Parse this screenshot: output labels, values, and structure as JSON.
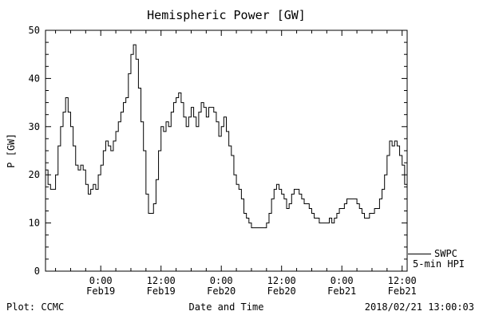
{
  "title": "Hemispheric Power [GW]",
  "ylabel": "P [GW]",
  "xlabel": "Date and Time",
  "footer": {
    "left": "Plot: CCMC",
    "right": "2018/02/21 13:00:03"
  },
  "legend": {
    "source": "SWPC",
    "series": "5-min HPI"
  },
  "colors": {
    "line": "#000000",
    "background": "#ffffff"
  },
  "chart_data": {
    "type": "line",
    "title": "Hemispheric Power [GW]",
    "xlabel": "Date and Time",
    "ylabel": "P [GW]",
    "ylim": [
      0,
      50
    ],
    "yticks": [
      0,
      10,
      20,
      30,
      40,
      50
    ],
    "y_minor_step": 2.5,
    "xlim": [
      0,
      72
    ],
    "x_unit": "hours; 0 = left edge (Feb18 13:00), ticks every 12 h",
    "x_minor_step": 3,
    "xticks": [
      {
        "pos": 11,
        "label": "0:00",
        "sub": "Feb19"
      },
      {
        "pos": 23,
        "label": "12:00",
        "sub": "Feb19"
      },
      {
        "pos": 35,
        "label": "0:00",
        "sub": "Feb20"
      },
      {
        "pos": 47,
        "label": "12:00",
        "sub": "Feb20"
      },
      {
        "pos": 59,
        "label": "0:00",
        "sub": "Feb21"
      },
      {
        "pos": 71,
        "label": "12:00",
        "sub": "Feb21"
      }
    ],
    "grid": false,
    "legend_position": "outside-right-bottom",
    "step": true,
    "series": [
      {
        "name": "SWPC 5-min HPI",
        "x_start": 0,
        "x_step": 0.5,
        "values": [
          21,
          18,
          17,
          17,
          20,
          26,
          30,
          33,
          36,
          33,
          30,
          26,
          22,
          21,
          22,
          21,
          18,
          16,
          17,
          18,
          17,
          20,
          22,
          25,
          27,
          26,
          25,
          27,
          29,
          31,
          33,
          35,
          36,
          41,
          45,
          47,
          44,
          38,
          31,
          25,
          16,
          12,
          12,
          14,
          19,
          25,
          30,
          29,
          31,
          30,
          33,
          35,
          36,
          37,
          35,
          32,
          30,
          32,
          34,
          32,
          30,
          33,
          35,
          34,
          32,
          34,
          34,
          33,
          31,
          28,
          30,
          32,
          29,
          26,
          24,
          20,
          18,
          17,
          15,
          12,
          11,
          10,
          9,
          9,
          9,
          9,
          9,
          9,
          10,
          12,
          15,
          17,
          18,
          17,
          16,
          15,
          13,
          14,
          16,
          17,
          17,
          16,
          15,
          14,
          14,
          13,
          12,
          11,
          11,
          10,
          10,
          10,
          10,
          11,
          10,
          11,
          12,
          13,
          13,
          14,
          15,
          15,
          15,
          15,
          14,
          13,
          12,
          11,
          11,
          12,
          12,
          13,
          13,
          15,
          17,
          20,
          24,
          27,
          26,
          27,
          26,
          24,
          22,
          18,
          17
        ]
      }
    ]
  }
}
